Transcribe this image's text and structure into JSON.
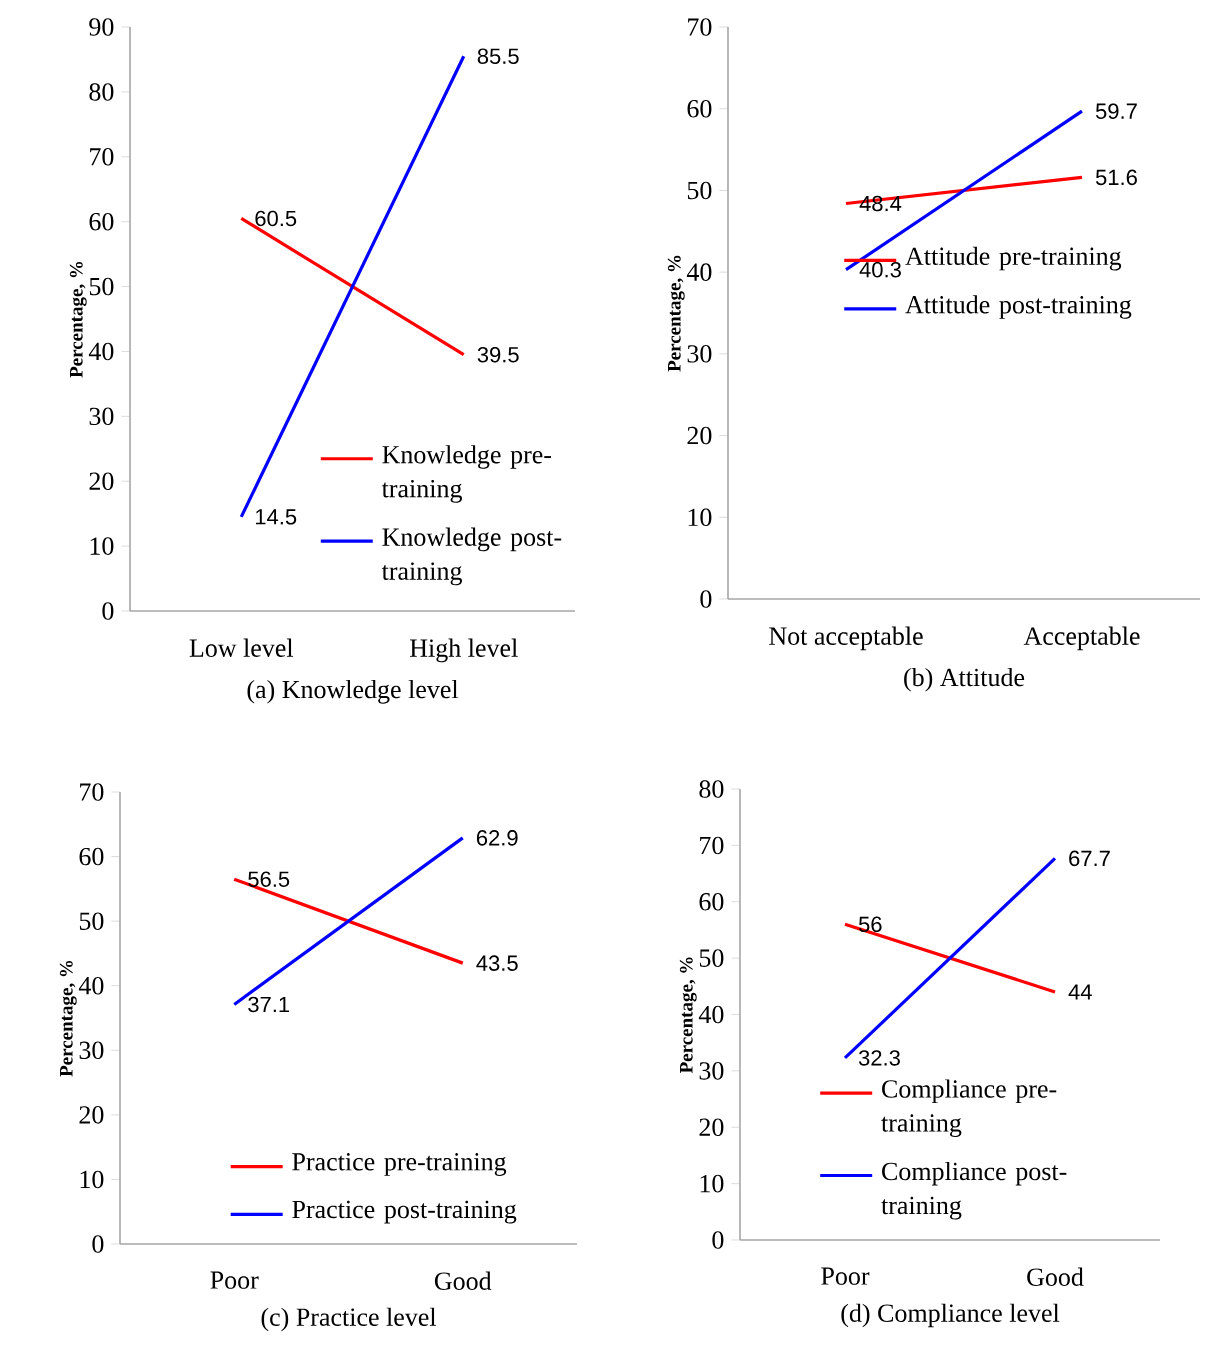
{
  "chart_data": [
    {
      "type": "line",
      "xlabel": "(a) Knowledge level",
      "ylabel": "Percentage, %",
      "categories": [
        "Low level",
        "High level"
      ],
      "ylim": [
        0,
        90
      ],
      "yticks": [
        0,
        10,
        20,
        30,
        40,
        50,
        60,
        70,
        80,
        90
      ],
      "data_labels": true,
      "legend": "bottom right",
      "marker": "none",
      "line_style": "solid",
      "series": [
        {
          "name": "Knowledge  pre-training",
          "color": "#ff0000",
          "values": [
            60.5,
            39.5
          ]
        },
        {
          "name": "Knowledge post-training",
          "color": "#0000ff",
          "values": [
            14.5,
            85.5
          ]
        }
      ]
    },
    {
      "type": "line",
      "xlabel": "(b) Attitude",
      "ylabel": "Percentage, %",
      "categories": [
        "Not acceptable",
        "Acceptable"
      ],
      "ylim": [
        0,
        70
      ],
      "yticks": [
        0,
        10,
        20,
        30,
        40,
        50,
        60,
        70
      ],
      "data_labels": true,
      "legend": "right",
      "marker": "none",
      "line_style": "solid",
      "series": [
        {
          "name": "Attitude pre-training",
          "color": "#ff0000",
          "values": [
            48.4,
            51.6
          ]
        },
        {
          "name": "Attitude post-training",
          "color": "#0000ff",
          "values": [
            40.3,
            59.7
          ]
        }
      ]
    },
    {
      "type": "line",
      "xlabel": "(c) Practice level",
      "ylabel": "Percentage, %",
      "categories": [
        "Poor",
        "Good"
      ],
      "ylim": [
        0,
        70
      ],
      "yticks": [
        0,
        10,
        20,
        30,
        40,
        50,
        60,
        70
      ],
      "data_labels": true,
      "legend": "bottom",
      "marker": "none",
      "line_style": "solid",
      "series": [
        {
          "name": "Practice pre-training",
          "color": "#ff0000",
          "values": [
            56.5,
            43.5
          ]
        },
        {
          "name": "Practice post-training",
          "color": "#0000ff",
          "values": [
            37.1,
            62.9
          ]
        }
      ]
    },
    {
      "type": "line",
      "xlabel": "(d) Compliance level",
      "ylabel": "Percentage, %",
      "categories": [
        "Poor",
        "Good"
      ],
      "ylim": [
        0,
        80
      ],
      "yticks": [
        0,
        10,
        20,
        30,
        40,
        50,
        60,
        70,
        80
      ],
      "data_labels": true,
      "legend": "bottom right",
      "marker": "none",
      "line_style": "solid",
      "series": [
        {
          "name": "Compliance pre-training",
          "color": "#ff0000",
          "values": [
            56,
            44
          ]
        },
        {
          "name": "Compliance post-training",
          "color": "#0000ff",
          "values": [
            32.3,
            67.7
          ]
        }
      ]
    }
  ]
}
